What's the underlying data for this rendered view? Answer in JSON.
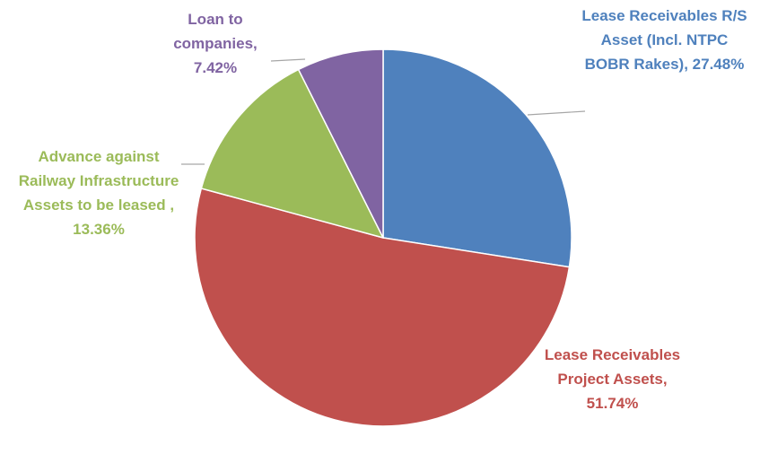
{
  "chart_data": {
    "type": "pie",
    "categories": [
      "Lease Receivables R/S Asset  (Incl. NTPC BOBR Rakes),",
      "Lease Receivables Project Assets,",
      "Advance against Railway Infrastructure Assets to be leased ,",
      "Loan to companies,"
    ],
    "values": [
      27.48,
      51.74,
      13.36,
      7.42
    ],
    "value_labels": [
      "27.48%",
      "51.74%",
      "13.36%",
      "7.42%"
    ],
    "colors": [
      "#4f81bd",
      "#c0504d",
      "#9bbb59",
      "#8064a2"
    ]
  }
}
